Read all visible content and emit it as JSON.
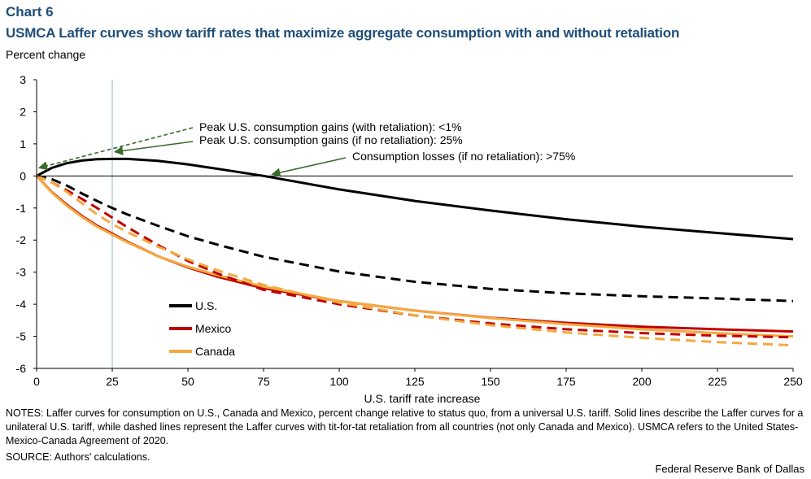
{
  "header": {
    "chart_number": "Chart 6",
    "title": "USMCA Laffer curves show tariff rates that maximize aggregate consumption with and without retaliation",
    "unit_label": "Percent change"
  },
  "footer": {
    "notes": "NOTES: Laffer curves for consumption on U.S., Canada and Mexico, percent change relative to status quo, from a universal U.S. tariff. Solid lines describe the Laffer curves for a unilateral U.S. tariff, while dashed lines represent the Laffer curves with tit-for-tat retaliation from all countries (not only Canada and Mexico). USMCA refers to the United States-Mexico-Canada Agreement of 2020.",
    "source": "SOURCE: Authors' calculations.",
    "credit": "Federal Reserve Bank of Dallas"
  },
  "chart_data": {
    "type": "line",
    "xlabel": "U.S. tariff rate increase",
    "ylabel": "Percent change",
    "xlim": [
      0,
      250
    ],
    "ylim": [
      -6,
      3
    ],
    "xticks": [
      0,
      25,
      50,
      75,
      100,
      125,
      150,
      175,
      200,
      225,
      250
    ],
    "yticks": [
      3,
      2,
      1,
      0,
      -1,
      -2,
      -3,
      -4,
      -5,
      -6
    ],
    "reference_line_x": 25,
    "x": [
      0,
      5,
      10,
      15,
      20,
      25,
      30,
      40,
      50,
      60,
      75,
      100,
      125,
      150,
      175,
      200,
      225,
      250
    ],
    "series": [
      {
        "name": "U.S.",
        "color": "#000000",
        "style": "solid",
        "legend": true,
        "values": [
          0,
          0.25,
          0.4,
          0.48,
          0.52,
          0.53,
          0.53,
          0.47,
          0.36,
          0.22,
          0.0,
          -0.42,
          -0.78,
          -1.08,
          -1.35,
          -1.58,
          -1.78,
          -1.97
        ]
      },
      {
        "name": "Mexico",
        "color": "#c00000",
        "style": "solid",
        "legend": true,
        "values": [
          0,
          -0.5,
          -0.9,
          -1.25,
          -1.55,
          -1.8,
          -2.05,
          -2.5,
          -2.85,
          -3.15,
          -3.5,
          -3.9,
          -4.2,
          -4.42,
          -4.58,
          -4.7,
          -4.78,
          -4.85
        ]
      },
      {
        "name": "Canada",
        "color": "#f4a940",
        "style": "solid",
        "legend": true,
        "values": [
          0,
          -0.52,
          -0.93,
          -1.28,
          -1.58,
          -1.83,
          -2.07,
          -2.5,
          -2.83,
          -3.1,
          -3.45,
          -3.9,
          -4.2,
          -4.43,
          -4.62,
          -4.78,
          -4.9,
          -5.0
        ]
      },
      {
        "name": "U.S. (retaliation)",
        "color": "#000000",
        "style": "dashed",
        "legend": false,
        "values": [
          0,
          -0.1,
          -0.3,
          -0.55,
          -0.78,
          -1.0,
          -1.2,
          -1.55,
          -1.88,
          -2.15,
          -2.52,
          -2.98,
          -3.3,
          -3.52,
          -3.66,
          -3.75,
          -3.82,
          -3.9
        ]
      },
      {
        "name": "Mexico (retaliation)",
        "color": "#c00000",
        "style": "dashed",
        "legend": false,
        "values": [
          0,
          -0.2,
          -0.45,
          -0.72,
          -1.0,
          -1.3,
          -1.6,
          -2.15,
          -2.65,
          -3.05,
          -3.55,
          -4.0,
          -4.35,
          -4.6,
          -4.78,
          -4.9,
          -4.98,
          -5.03
        ]
      },
      {
        "name": "Canada (retaliation)",
        "color": "#f4a940",
        "style": "dashed",
        "legend": false,
        "values": [
          0,
          -0.2,
          -0.5,
          -0.85,
          -1.2,
          -1.5,
          -1.75,
          -2.2,
          -2.6,
          -2.95,
          -3.4,
          -3.95,
          -4.35,
          -4.65,
          -4.88,
          -5.05,
          -5.18,
          -5.28
        ]
      }
    ],
    "annotations": [
      {
        "text": "Peak U.S. consumption gains (with retaliation): <1%",
        "point_x": 0,
        "point_y": 0.25,
        "arrow_style": "dashed",
        "label_anchor": "upper-middle"
      },
      {
        "text": "Peak U.S. consumption gains (if no retaliation): 25%",
        "point_x": 25,
        "point_y": 0.75,
        "arrow_style": "solid",
        "label_anchor": "upper-middle"
      },
      {
        "text": "Consumption losses (if no retaliation): >75%",
        "point_x": 77,
        "point_y": 0.05,
        "arrow_style": "solid",
        "label_anchor": "middle-right"
      }
    ],
    "legend_position": "lower-left"
  }
}
